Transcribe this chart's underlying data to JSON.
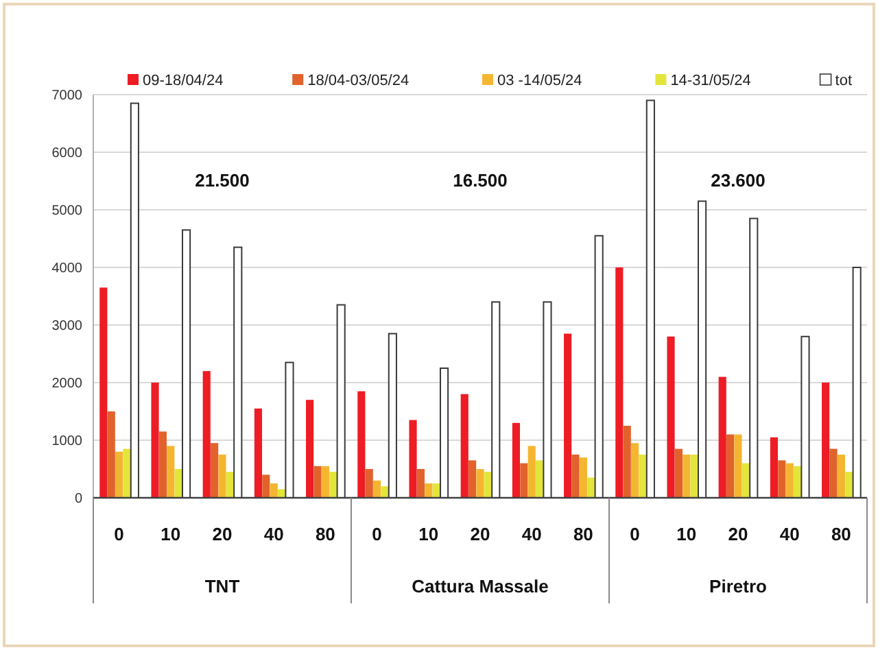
{
  "chart_data": {
    "type": "bar",
    "categories": [
      "0",
      "10",
      "20",
      "40",
      "80",
      "0",
      "10",
      "20",
      "40",
      "80",
      "0",
      "10",
      "20",
      "40",
      "80"
    ],
    "series": [
      {
        "name": "09-18/04/24",
        "color": "#ee1c24",
        "values": [
          3650,
          2000,
          2200,
          1550,
          1700,
          1850,
          1350,
          1800,
          1300,
          2850,
          4000,
          2800,
          2100,
          1050,
          2000
        ]
      },
      {
        "name": "18/04-03/05/24",
        "color": "#e2622c",
        "values": [
          1500,
          1150,
          950,
          400,
          550,
          500,
          500,
          650,
          600,
          750,
          1250,
          850,
          1100,
          650,
          850
        ]
      },
      {
        "name": "03 -14/05/24",
        "color": "#f4b631",
        "values": [
          800,
          900,
          750,
          250,
          550,
          300,
          250,
          500,
          900,
          700,
          950,
          750,
          1100,
          600,
          750
        ]
      },
      {
        "name": "14-31/05/24",
        "color": "#e3e53a",
        "values": [
          850,
          500,
          450,
          150,
          450,
          200,
          250,
          450,
          650,
          350,
          750,
          750,
          600,
          550,
          450
        ]
      },
      {
        "name": "tot",
        "color": "#ffffff",
        "values": [
          6850,
          4650,
          4350,
          2350,
          3350,
          2850,
          2250,
          3400,
          3400,
          4550,
          6900,
          5150,
          4850,
          2800,
          4000
        ]
      }
    ],
    "ylim": [
      0,
      7000
    ],
    "yticks": [
      0,
      1000,
      2000,
      3000,
      4000,
      5000,
      6000,
      7000
    ],
    "grid": "y",
    "legend": "top",
    "annotations": [
      "21.500",
      "16.500",
      "23.600",
      "TNT",
      "Cattura Massale",
      "Piretro"
    ]
  }
}
